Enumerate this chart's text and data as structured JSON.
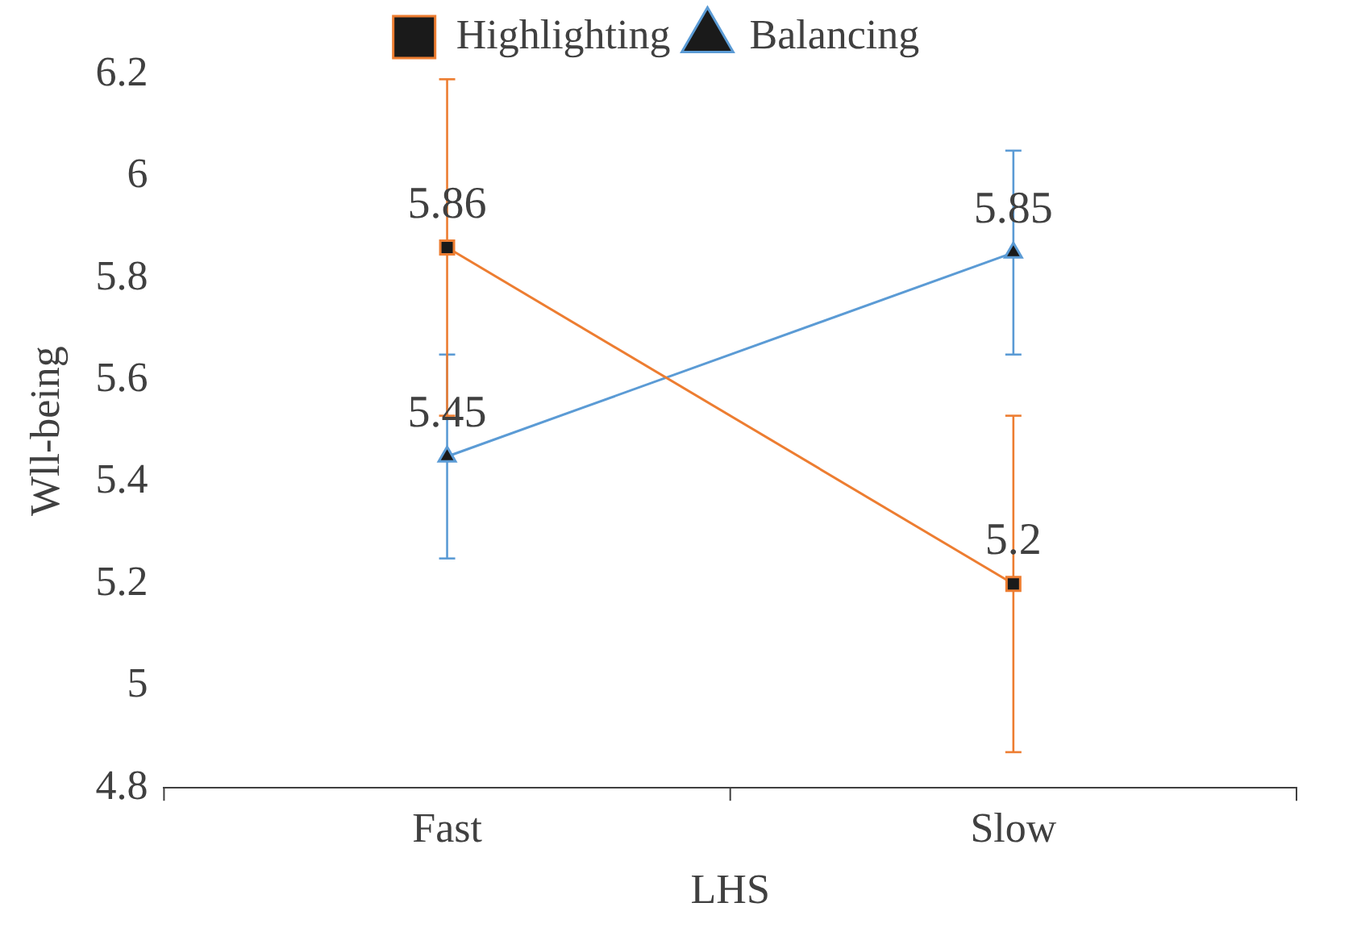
{
  "chart_data": {
    "type": "line",
    "xlabel": "LHS",
    "ylabel": "Wll-being",
    "categories": [
      "Fast",
      "Slow"
    ],
    "series": [
      {
        "name": "Highlighting",
        "color": "#ed7d31",
        "marker": "square",
        "values": [
          5.86,
          5.2
        ],
        "errors": [
          0.33,
          0.33
        ]
      },
      {
        "name": "Balancing",
        "color": "#5b9bd5",
        "marker": "triangle",
        "values": [
          5.45,
          5.85
        ],
        "errors": [
          0.2,
          0.2
        ]
      }
    ],
    "ylim": [
      4.8,
      6.2
    ],
    "yticks": [
      4.8,
      5,
      5.2,
      5.4,
      5.6,
      5.8,
      6,
      6.2
    ],
    "grid": false,
    "legend": "top",
    "data_labels": true
  }
}
